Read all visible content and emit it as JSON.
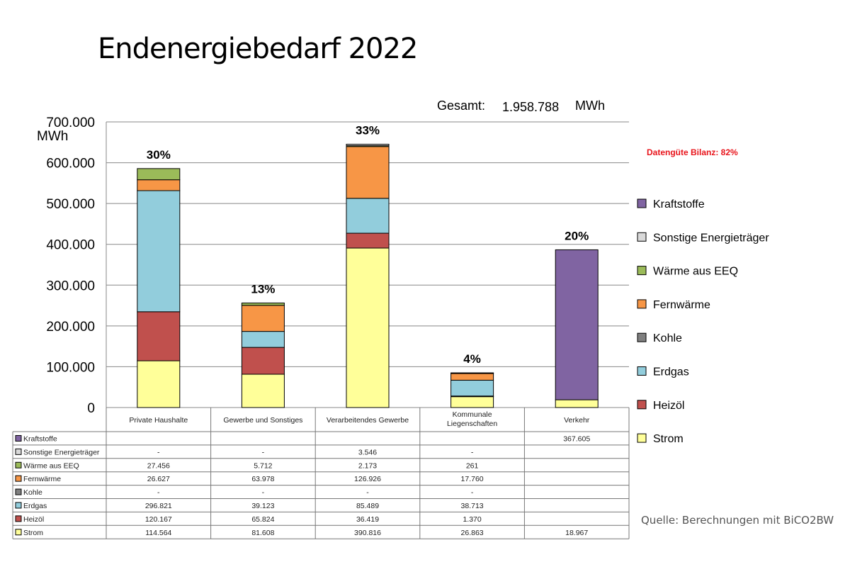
{
  "chart_data": {
    "type": "bar",
    "stacked": true,
    "title": "Endenergiebedarf 2022",
    "total_label": "Gesamt:",
    "total_value": "1.958.788",
    "total_unit": "MWh",
    "quality_note": "Datengüte Bilanz: 82%",
    "ylabel": "MWh",
    "ylim": [
      0,
      700000
    ],
    "yticks": [
      {
        "value": 0,
        "label": "0"
      },
      {
        "value": 100000,
        "label": "100.000"
      },
      {
        "value": 200000,
        "label": "200.000"
      },
      {
        "value": 300000,
        "label": "300.000"
      },
      {
        "value": 400000,
        "label": "400.000"
      },
      {
        "value": 500000,
        "label": "500.000"
      },
      {
        "value": 600000,
        "label": "600.000"
      },
      {
        "value": 700000,
        "label": "700.000"
      }
    ],
    "grid": true,
    "legend_position": "right",
    "categories": [
      "Private Haushalte",
      "Gewerbe und Sonstiges",
      "Verarbeitendes Gewerbe",
      "Kommunale Liegenschaften",
      "Verkehr"
    ],
    "shares": [
      "30%",
      "13%",
      "33%",
      "4%",
      "20%"
    ],
    "series": [
      {
        "name": "Strom",
        "color": "#ffff99",
        "values": [
          114564,
          81608,
          390816,
          26863,
          18967
        ],
        "labels": [
          "114.564",
          "81.608",
          "390.816",
          "26.863",
          "18.967"
        ]
      },
      {
        "name": "Heizöl",
        "color": "#c0504d",
        "values": [
          120167,
          65824,
          36419,
          1370,
          null
        ],
        "labels": [
          "120.167",
          "65.824",
          "36.419",
          "1.370",
          ""
        ]
      },
      {
        "name": "Erdgas",
        "color": "#92cddc",
        "values": [
          296821,
          39123,
          85489,
          38713,
          null
        ],
        "labels": [
          "296.821",
          "39.123",
          "85.489",
          "38.713",
          ""
        ]
      },
      {
        "name": "Kohle",
        "color": "#7f7f7f",
        "values": [
          0,
          0,
          0,
          0,
          null
        ],
        "labels": [
          "-",
          "-",
          "-",
          "-",
          ""
        ]
      },
      {
        "name": "Fernwärme",
        "color": "#f79646",
        "values": [
          26627,
          63978,
          126926,
          17760,
          null
        ],
        "labels": [
          "26.627",
          "63.978",
          "126.926",
          "17.760",
          ""
        ]
      },
      {
        "name": "Wärme aus EEQ",
        "color": "#9bbb59",
        "values": [
          27456,
          5712,
          2173,
          261,
          null
        ],
        "labels": [
          "27.456",
          "5.712",
          "2.173",
          "261",
          ""
        ]
      },
      {
        "name": "Sonstige Energieträger",
        "color": "#d9d9d9",
        "values": [
          0,
          0,
          3546,
          0,
          null
        ],
        "labels": [
          "-",
          "-",
          "3.546",
          "-",
          ""
        ]
      },
      {
        "name": "Kraftstoffe",
        "color": "#8064a2",
        "values": [
          null,
          null,
          null,
          null,
          367605
        ],
        "labels": [
          "",
          "",
          "",
          "",
          "367.605"
        ]
      }
    ]
  },
  "source": "Quelle: Berechnungen mit BiCO2BW"
}
